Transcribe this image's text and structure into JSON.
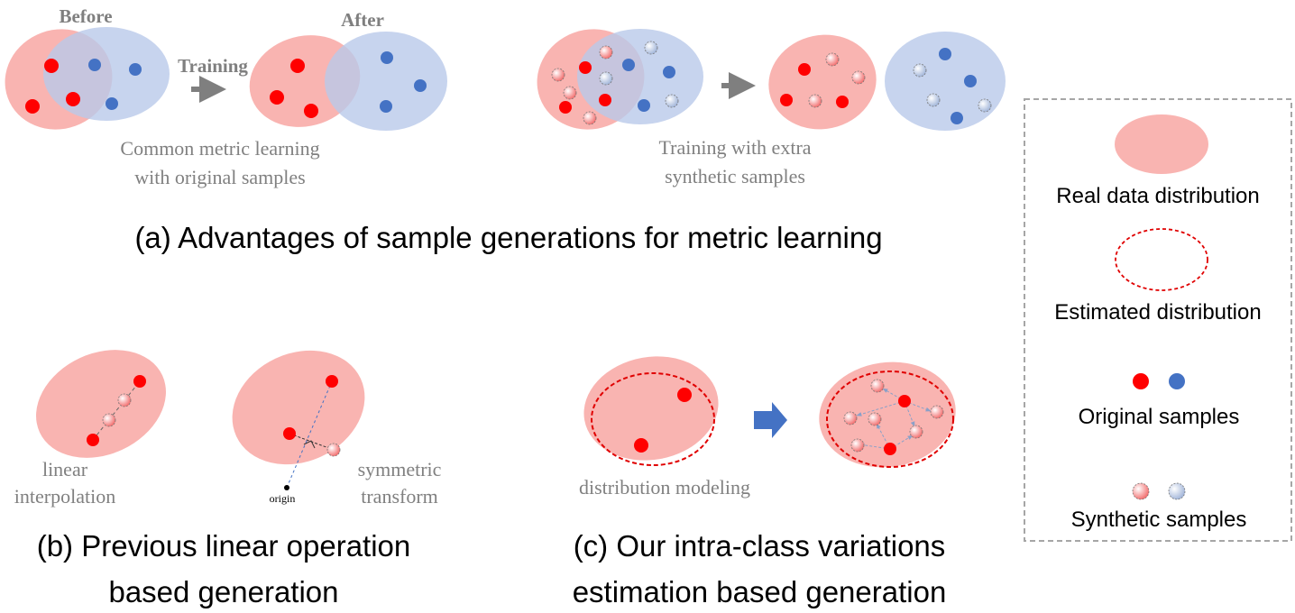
{
  "colors": {
    "real": "#f9b4b1",
    "blue_region": "#b9c9ea",
    "red_dot": "#ff0000",
    "blue_dot": "#4472c4",
    "arrow_gray": "#7f7f7f",
    "arrow_blue": "#4472c4",
    "dashed_red": "#e00000",
    "legend_border": "#a6a6a6"
  },
  "panel_a": {
    "before_label": "Before",
    "after_label": "After",
    "training_label": "Training",
    "left_desc": [
      "Common metric learning",
      "with original samples"
    ],
    "right_desc": [
      "Training with extra",
      "synthetic samples"
    ],
    "caption": "(a) Advantages of sample generations for metric learning"
  },
  "panel_b": {
    "linear_label": [
      "linear",
      "interpolation"
    ],
    "symmetric_label": [
      "symmetric",
      "transform"
    ],
    "origin_label": "origin",
    "caption": [
      "(b) Previous linear operation",
      "based generation"
    ]
  },
  "panel_c": {
    "modeling_label": "distribution modeling",
    "caption": [
      "(c) Our intra-class variations",
      "estimation based generation"
    ]
  },
  "legend": {
    "real": "Real data distribution",
    "estimated": "Estimated distribution",
    "original": "Original samples",
    "synthetic": "Synthetic samples"
  }
}
